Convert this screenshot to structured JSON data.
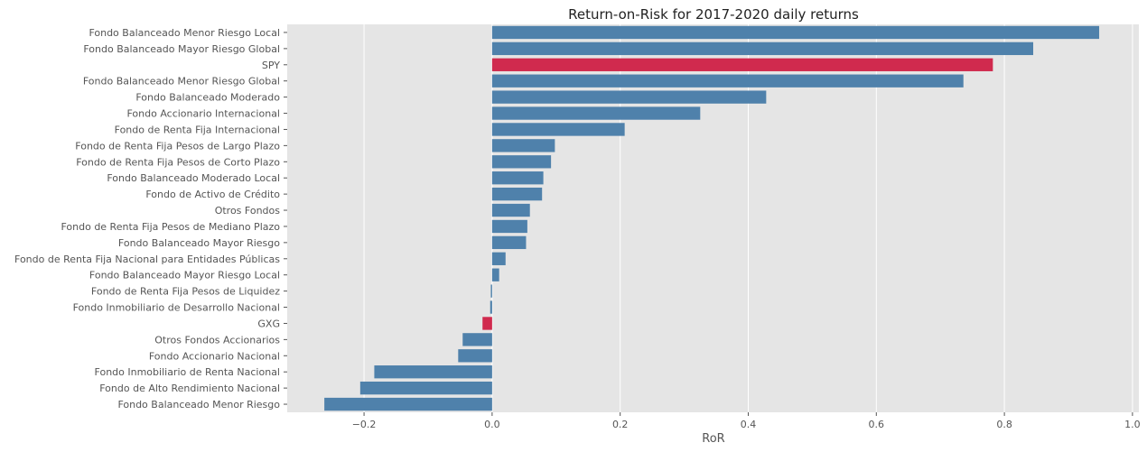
{
  "chart_data": {
    "type": "bar",
    "orientation": "horizontal",
    "title": "Return-on-Risk for 2017-2020 daily returns",
    "xlabel": "RoR",
    "ylabel": "",
    "xlim": [
      -0.32,
      1.01
    ],
    "xticks": [
      -0.2,
      0.0,
      0.2,
      0.4,
      0.6,
      0.8,
      1.0
    ],
    "xtick_labels": [
      "−0.2",
      "0.0",
      "0.2",
      "0.4",
      "0.6",
      "0.8",
      "1.0"
    ],
    "grid": true,
    "colors": {
      "default": "#4f81ab",
      "highlight": "#d02a4e",
      "background": "#e5e5e5",
      "grid": "#ffffff",
      "text": "#555555",
      "title": "#222222"
    },
    "categories": [
      "Fondo Balanceado Menor Riesgo Local",
      "Fondo Balanceado Mayor Riesgo Global",
      "SPY",
      "Fondo Balanceado Menor Riesgo Global",
      "Fondo Balanceado Moderado",
      "Fondo Accionario Internacional",
      "Fondo de Renta Fija Internacional",
      "Fondo de Renta Fija Pesos de Largo Plazo",
      "Fondo de Renta Fija Pesos de Corto Plazo",
      "Fondo Balanceado Moderado Local",
      "Fondo de Activo de Crédito",
      "Otros Fondos",
      "Fondo de Renta Fija Pesos de Mediano Plazo",
      "Fondo Balanceado Mayor Riesgo",
      "Fondo de Renta Fija Nacional para Entidades Públicas",
      "Fondo Balanceado Mayor Riesgo Local",
      "Fondo de Renta Fija Pesos de Liquidez",
      "Fondo Inmobiliario de Desarrollo Nacional",
      "GXG",
      "Otros Fondos Accionarios",
      "Fondo Accionario Nacional",
      "Fondo Inmobiliario de Renta Nacional",
      "Fondo de Alto Rendimiento Nacional",
      "Fondo Balanceado Menor Riesgo"
    ],
    "values": [
      0.948,
      0.845,
      0.782,
      0.736,
      0.428,
      0.325,
      0.207,
      0.098,
      0.092,
      0.08,
      0.078,
      0.059,
      0.055,
      0.053,
      0.021,
      0.011,
      -0.002,
      -0.003,
      -0.015,
      -0.046,
      -0.053,
      -0.184,
      -0.206,
      -0.262
    ],
    "highlight": [
      "SPY",
      "GXG"
    ]
  }
}
